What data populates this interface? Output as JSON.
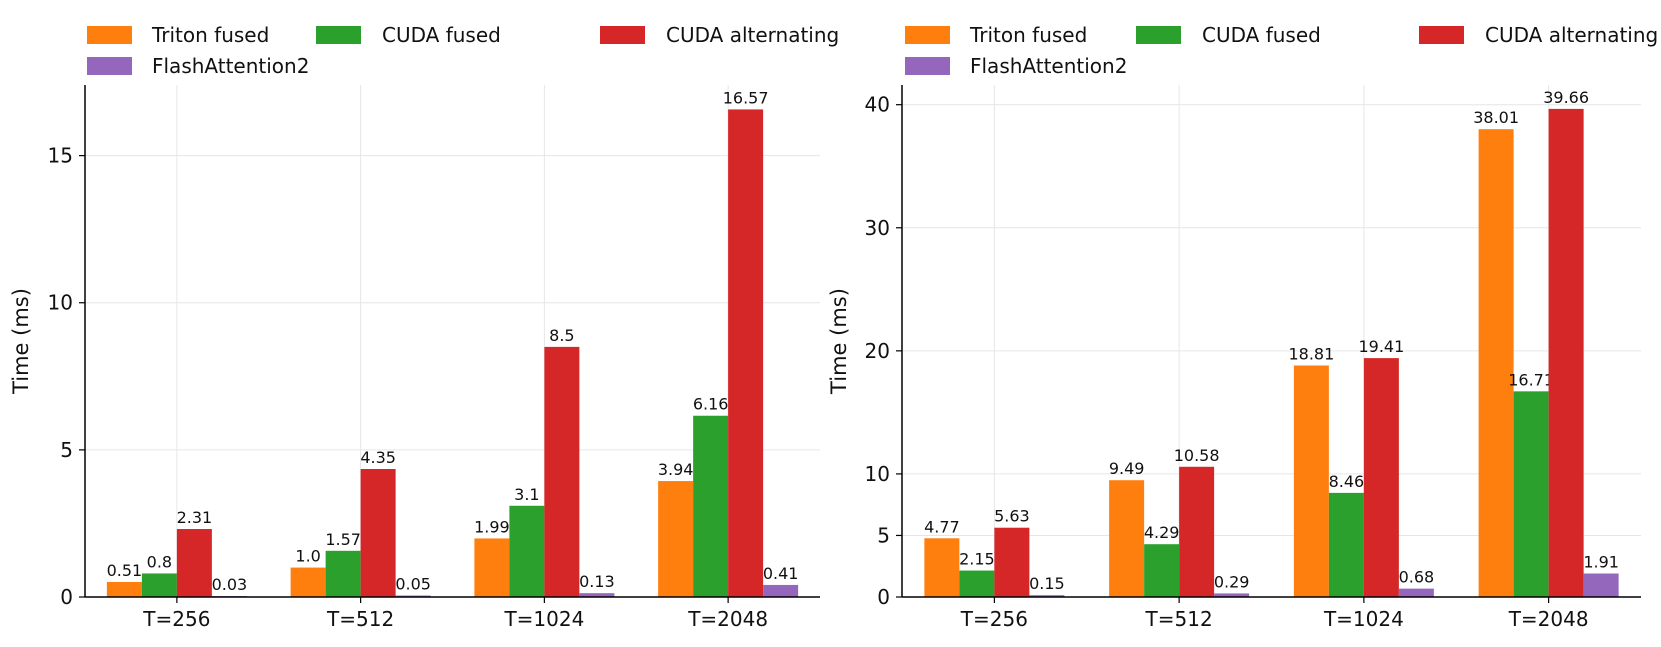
{
  "chart_data": [
    {
      "type": "bar",
      "categories": [
        "T=256",
        "T=512",
        "T=1024",
        "T=2048"
      ],
      "series": [
        {
          "name": "Triton fused",
          "color": "#ff7f0e",
          "values": [
            0.51,
            1.0,
            1.99,
            3.94
          ],
          "labels": [
            "0.51",
            "1.0",
            "1.99",
            "3.94"
          ]
        },
        {
          "name": "CUDA fused",
          "color": "#2ca02c",
          "values": [
            0.8,
            1.57,
            3.1,
            6.16
          ],
          "labels": [
            "0.8",
            "1.57",
            "3.1",
            "6.16"
          ]
        },
        {
          "name": "CUDA alternating",
          "color": "#d62728",
          "values": [
            2.31,
            4.35,
            8.5,
            16.57
          ],
          "labels": [
            "2.31",
            "4.35",
            "8.5",
            "16.57"
          ]
        },
        {
          "name": "FlashAttention2",
          "color": "#9467bd",
          "values": [
            0.03,
            0.05,
            0.13,
            0.41
          ],
          "labels": [
            "0.03",
            "0.05",
            "0.13",
            "0.41"
          ]
        }
      ],
      "xlabel": "",
      "ylabel": "Time (ms)",
      "ylim": [
        0,
        17.4
      ],
      "yticks": [
        0,
        5,
        10,
        15
      ],
      "ytick_labels": [
        "0",
        "5",
        "10",
        "15"
      ],
      "grid": true,
      "legend_position": "top"
    },
    {
      "type": "bar",
      "categories": [
        "T=256",
        "T=512",
        "T=1024",
        "T=2048"
      ],
      "series": [
        {
          "name": "Triton fused",
          "color": "#ff7f0e",
          "values": [
            4.77,
            9.49,
            18.81,
            38.01
          ],
          "labels": [
            "4.77",
            "9.49",
            "18.81",
            "38.01"
          ]
        },
        {
          "name": "CUDA fused",
          "color": "#2ca02c",
          "values": [
            2.15,
            4.29,
            8.46,
            16.71
          ],
          "labels": [
            "2.15",
            "4.29",
            "8.46",
            "16.71"
          ]
        },
        {
          "name": "CUDA alternating",
          "color": "#d62728",
          "values": [
            5.63,
            10.58,
            19.41,
            39.66
          ],
          "labels": [
            "5.63",
            "10.58",
            "19.41",
            "39.66"
          ]
        },
        {
          "name": "FlashAttention2",
          "color": "#9467bd",
          "values": [
            0.15,
            0.29,
            0.68,
            1.91
          ],
          "labels": [
            "0.15",
            "0.29",
            "0.68",
            "1.91"
          ]
        }
      ],
      "xlabel": "",
      "ylabel": "Time (ms)",
      "ylim": [
        0,
        41.6
      ],
      "yticks": [
        0,
        5,
        10,
        20,
        30,
        40
      ],
      "ytick_labels": [
        "0",
        "5",
        "10",
        "20",
        "30",
        "40"
      ],
      "grid": true,
      "legend_position": "top"
    }
  ]
}
